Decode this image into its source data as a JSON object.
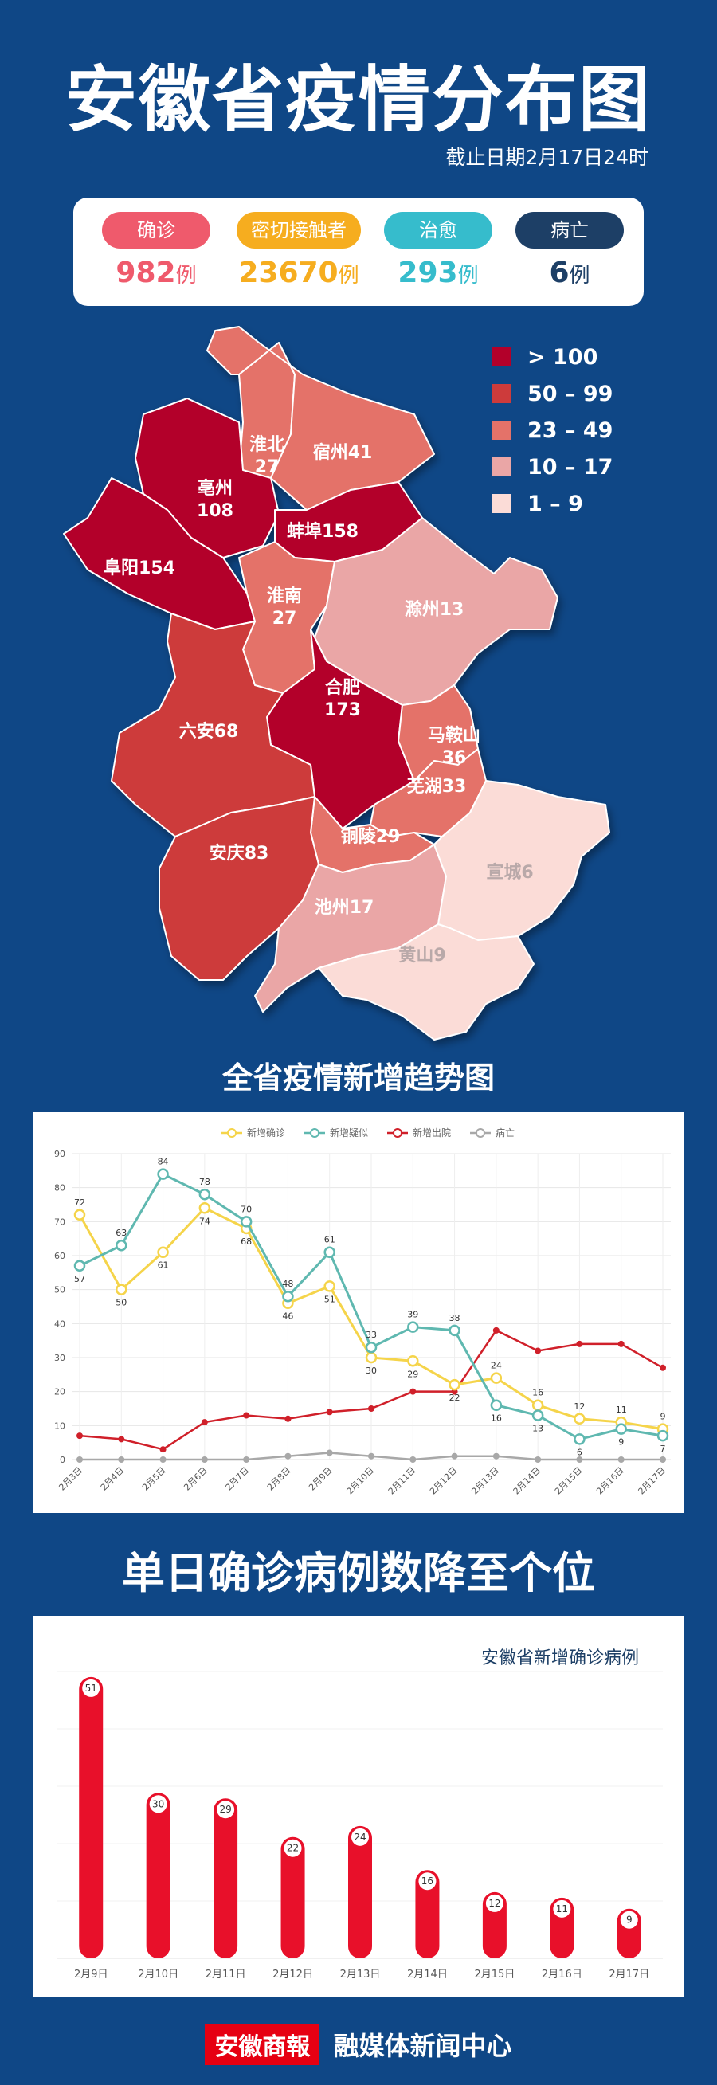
{
  "title": "安徽省疫情分布图",
  "date": "截止日期2月17日24时",
  "stats": [
    {
      "label": "确诊",
      "value": "982",
      "unit": "例",
      "color": "#ef5a6c"
    },
    {
      "label": "密切接触者",
      "value": "23670",
      "unit": "例",
      "color": "#f6ad1f"
    },
    {
      "label": "治愈",
      "value": "293",
      "unit": "例",
      "color": "#36bccc"
    },
    {
      "label": "病亡",
      "value": "6",
      "unit": "例",
      "color": "#1d3f66"
    }
  ],
  "legend": [
    {
      "label": "> 100",
      "color": "#b3002a"
    },
    {
      "label": "50 – 99",
      "color": "#cd3b3b"
    },
    {
      "label": "23 – 49",
      "color": "#e47269"
    },
    {
      "label": "10 – 17",
      "color": "#eaa6a6"
    },
    {
      "label": "1 – 9",
      "color": "#fbdcd7"
    }
  ],
  "regions": [
    {
      "name": "淮北",
      "value": "27",
      "color": "#e47269"
    },
    {
      "name": "宿州",
      "value": "41",
      "color": "#e47269"
    },
    {
      "name": "亳州",
      "value": "108",
      "color": "#b3002a"
    },
    {
      "name": "阜阳",
      "value": "154",
      "color": "#b3002a"
    },
    {
      "name": "蚌埠",
      "value": "158",
      "color": "#b3002a"
    },
    {
      "name": "淮南",
      "value": "27",
      "color": "#e47269"
    },
    {
      "name": "滁州",
      "value": "13",
      "color": "#eaa6a6"
    },
    {
      "name": "合肥",
      "value": "173",
      "color": "#b3002a"
    },
    {
      "name": "六安",
      "value": "68",
      "color": "#cd3b3b"
    },
    {
      "name": "马鞍山",
      "value": "36",
      "color": "#e47269"
    },
    {
      "name": "芜湖",
      "value": "33",
      "color": "#e47269"
    },
    {
      "name": "铜陵",
      "value": "29",
      "color": "#e47269"
    },
    {
      "name": "安庆",
      "value": "83",
      "color": "#cd3b3b"
    },
    {
      "name": "池州",
      "value": "17",
      "color": "#eaa6a6"
    },
    {
      "name": "宣城",
      "value": "6",
      "color": "#fbdcd7"
    },
    {
      "name": "黄山",
      "value": "9",
      "color": "#fbdcd7"
    }
  ],
  "trend_title": "全省疫情新增趋势图",
  "bar_title": "单日确诊病例数降至个位",
  "chart_data": [
    {
      "type": "line",
      "x": [
        "2月3日",
        "2月4日",
        "2月5日",
        "2月6日",
        "2月7日",
        "2月8日",
        "2月9日",
        "2月10日",
        "2月11日",
        "2月12日",
        "2月13日",
        "2月14日",
        "2月15日",
        "2月16日",
        "2月17日"
      ],
      "ylim": [
        0,
        90
      ],
      "yticks": [
        0,
        10,
        20,
        30,
        40,
        50,
        60,
        70,
        80,
        90
      ],
      "grid": true,
      "legend_position": "top",
      "series": [
        {
          "name": "新增确诊",
          "color": "#f5d44a",
          "values": [
            72,
            50,
            61,
            74,
            68,
            46,
            51,
            30,
            29,
            22,
            24,
            16,
            12,
            11,
            9
          ],
          "labels": true
        },
        {
          "name": "新增疑似",
          "color": "#5fb8b0",
          "values": [
            57,
            63,
            84,
            78,
            70,
            48,
            61,
            33,
            39,
            38,
            16,
            13,
            6,
            9,
            7
          ],
          "labels": true
        },
        {
          "name": "新增出院",
          "color": "#d0202a",
          "values": [
            7,
            6,
            3,
            11,
            13,
            12,
            14,
            15,
            20,
            20,
            38,
            32,
            34,
            34,
            27
          ],
          "labels": false
        },
        {
          "name": "病亡",
          "color": "#a8a8a8",
          "values": [
            0,
            0,
            0,
            0,
            0,
            1,
            2,
            1,
            0,
            1,
            1,
            0,
            0,
            0,
            0
          ],
          "labels": false
        }
      ]
    },
    {
      "type": "bar",
      "title": "安徽省新增确诊病例",
      "categories": [
        "2月9日",
        "2月10日",
        "2月11日",
        "2月12日",
        "2月13日",
        "2月14日",
        "2月15日",
        "2月16日",
        "2月17日"
      ],
      "values": [
        51,
        30,
        29,
        22,
        24,
        16,
        12,
        11,
        9
      ],
      "ylim": [
        0,
        52
      ],
      "color": "#e8102a"
    }
  ],
  "footer": {
    "brand": "安徽商報",
    "org": "融媒体新闻中心"
  }
}
